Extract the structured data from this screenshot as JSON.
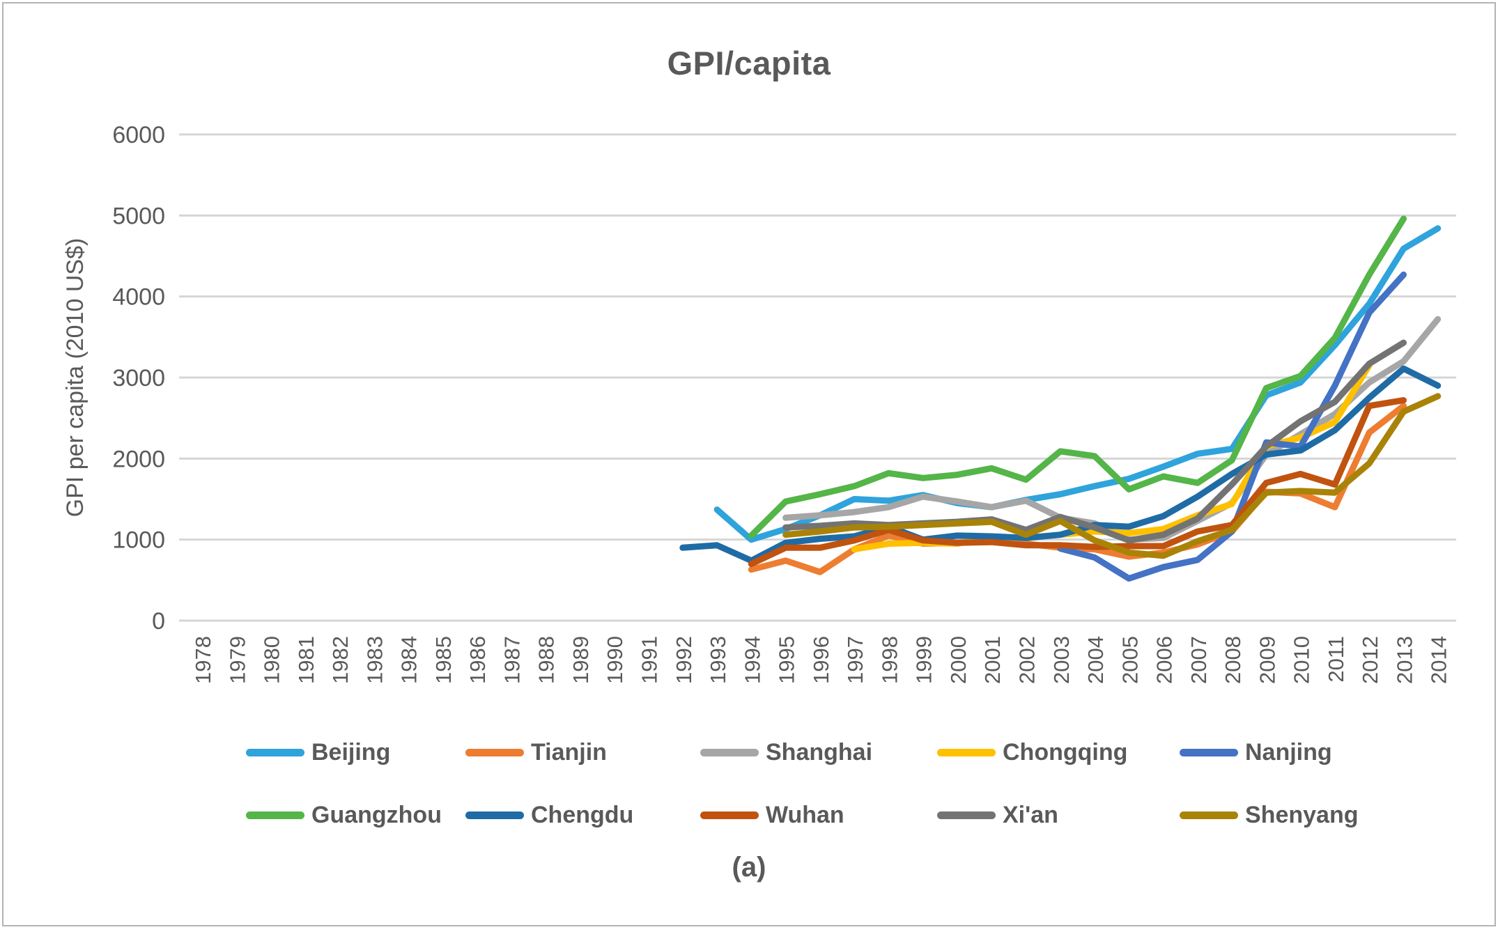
{
  "figure": {
    "caption": "(a)",
    "border_color": "#b3b3b3",
    "background": "#ffffff",
    "text_color": "#595959",
    "gridline_color": "#d6d6d6"
  },
  "chart_data": {
    "type": "line",
    "title": "GPI/capita",
    "xlabel": "",
    "ylabel": "GPI per capita (2010 US$)",
    "ylim": [
      0,
      6000
    ],
    "y_ticks": [
      0,
      1000,
      2000,
      3000,
      4000,
      5000,
      6000
    ],
    "x_ticks": [
      1978,
      1979,
      1980,
      1981,
      1982,
      1983,
      1984,
      1985,
      1986,
      1987,
      1988,
      1989,
      1990,
      1991,
      1992,
      1993,
      1994,
      1995,
      1996,
      1997,
      1998,
      1999,
      2000,
      2001,
      2002,
      2003,
      2004,
      2005,
      2006,
      2007,
      2008,
      2009,
      2010,
      2011,
      2012,
      2013,
      2014
    ],
    "grid": "horizontal",
    "legend_position": "bottom",
    "series": [
      {
        "name": "Beijing",
        "color": "#2FA3DC",
        "start_year": 1993,
        "values": [
          1370,
          1000,
          1130,
          1300,
          1500,
          1480,
          1550,
          1450,
          1400,
          1490,
          1560,
          1660,
          1750,
          1900,
          2060,
          2120,
          2780,
          2940,
          3400,
          3910,
          4590,
          4840
        ]
      },
      {
        "name": "Tianjin",
        "color": "#ED7D31",
        "start_year": 1994,
        "values": [
          630,
          740,
          600,
          880,
          1050,
          950,
          960,
          980,
          950,
          900,
          880,
          790,
          840,
          940,
          1100,
          1590,
          1570,
          1400,
          2320,
          2650
        ]
      },
      {
        "name": "Shanghai",
        "color": "#A6A6A6",
        "start_year": 1995,
        "values": [
          1270,
          1300,
          1340,
          1400,
          1530,
          1470,
          1400,
          1480,
          1270,
          1200,
          1000,
          1020,
          1230,
          1450,
          2050,
          2300,
          2550,
          2940,
          3200,
          3720
        ]
      },
      {
        "name": "Chongqing",
        "color": "#FFC000",
        "start_year": 1997,
        "values": [
          880,
          950,
          960,
          950,
          1030,
          1020,
          1060,
          1100,
          1080,
          1130,
          1300,
          1440,
          2150,
          2260,
          2450,
          3150
        ]
      },
      {
        "name": "Nanjing",
        "color": "#4472C4",
        "start_year": 2003,
        "values": [
          890,
          780,
          520,
          660,
          750,
          1100,
          2200,
          2150,
          2900,
          3800,
          4270
        ]
      },
      {
        "name": "Guangzhou",
        "color": "#54B548",
        "start_year": 1994,
        "values": [
          1050,
          1470,
          1560,
          1660,
          1820,
          1760,
          1800,
          1880,
          1740,
          2090,
          2030,
          1620,
          1780,
          1700,
          1980,
          2870,
          3020,
          3490,
          4270,
          4960
        ]
      },
      {
        "name": "Chengdu",
        "color": "#1F6BA5",
        "start_year": 1992,
        "values": [
          900,
          930,
          740,
          960,
          1010,
          1040,
          1160,
          1000,
          1050,
          1040,
          1020,
          1060,
          1180,
          1160,
          1290,
          1530,
          1810,
          2050,
          2100,
          2350,
          2750,
          3110,
          2900
        ]
      },
      {
        "name": "Wuhan",
        "color": "#C0530F",
        "start_year": 1994,
        "values": [
          700,
          900,
          900,
          990,
          1120,
          990,
          960,
          970,
          930,
          930,
          910,
          920,
          920,
          1100,
          1180,
          1700,
          1810,
          1680,
          2650,
          2720
        ]
      },
      {
        "name": "Xi'an",
        "color": "#737373",
        "start_year": 1995,
        "values": [
          1150,
          1170,
          1200,
          1180,
          1200,
          1220,
          1250,
          1120,
          1280,
          1150,
          990,
          1060,
          1260,
          1680,
          2150,
          2460,
          2700,
          3170,
          3430
        ]
      },
      {
        "name": "Shenyang",
        "color": "#A98308",
        "start_year": 1995,
        "values": [
          1060,
          1100,
          1150,
          1160,
          1180,
          1200,
          1220,
          1060,
          1230,
          990,
          840,
          800,
          980,
          1120,
          1580,
          1600,
          1580,
          1940,
          2580,
          2770
        ]
      }
    ]
  }
}
